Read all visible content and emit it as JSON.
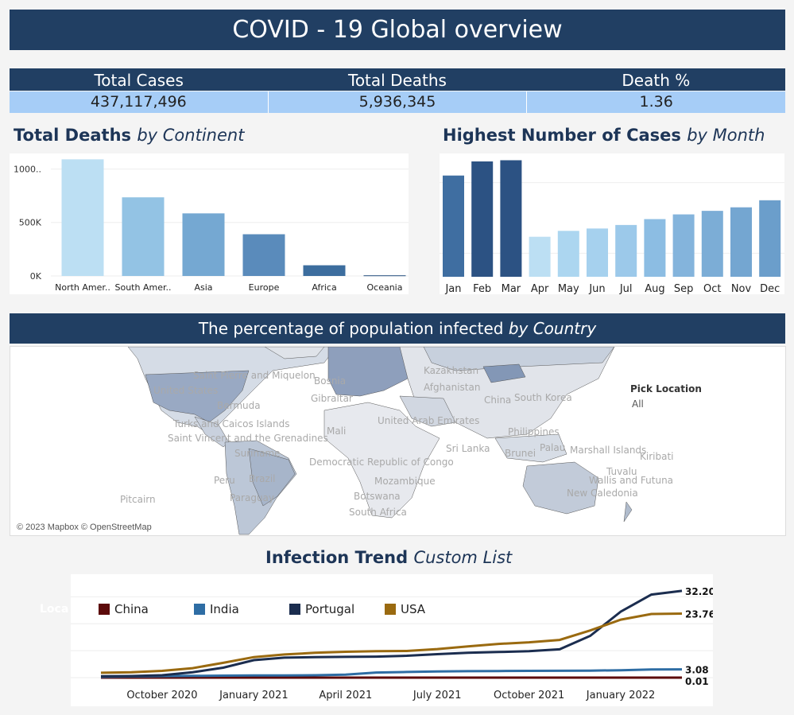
{
  "header": {
    "title": "COVID - 19 Global overview"
  },
  "kpis": {
    "labels": [
      "Total Cases",
      "Total Deaths",
      "Death %"
    ],
    "values": [
      "437,117,496",
      "5,936,345",
      "1.36"
    ]
  },
  "deaths_section": {
    "title_bold": "Total Deaths",
    "title_italic": "by Continent"
  },
  "cases_section": {
    "title_bold": "Highest Number of Cases",
    "title_italic": "by Month"
  },
  "map_section": {
    "title_plain": "The percentage of population infected",
    "title_italic": "by Country",
    "pick_location_label": "Pick Location",
    "pick_location_value": "All",
    "attribution": "© 2023 Mapbox © OpenStreetMap",
    "place_labels": [
      "United States",
      "Saint Pierre and Miquelon",
      "Bermuda",
      "Turks and Caicos Islands",
      "Saint Vincent and the Grenadines",
      "Suriname",
      "Brazil",
      "Peru",
      "Paraguay",
      "Pitcairn",
      "Kazakhstan",
      "Afghanistan",
      "China",
      "South Korea",
      "United Arab Emirates",
      "Mali",
      "Democratic Republic of Congo",
      "Sri Lanka",
      "Philippines",
      "Brunei",
      "Palau",
      "Marshall Islands",
      "Kiribati",
      "Tuvalu",
      "Wallis and Futuna",
      "New Caledonia",
      "Botswana",
      "South Africa",
      "Mozambique",
      "Bosnia",
      "Gibraltar"
    ]
  },
  "trend_section": {
    "title_bold": "Infection Trend",
    "title_italic": "Custom List",
    "hidden_label": "Loca",
    "end_labels": [
      "32.20",
      "23.76",
      "3.08",
      "0.01"
    ]
  },
  "colors": {
    "navy": "#213f63",
    "kpi_light": "#a6cdf7",
    "china": "#5c0a0a",
    "india": "#2e6da4",
    "portugal": "#1b2d4f",
    "usa": "#9a6a10"
  },
  "chart_data": [
    {
      "type": "bar",
      "title": "Total Deaths by Continent",
      "categories": [
        "North America",
        "South America",
        "Asia",
        "Europe",
        "Africa",
        "Oceania"
      ],
      "tick_labels": [
        "North Amer..",
        "South Amer..",
        "Asia",
        "Europe",
        "Africa",
        "Oceania"
      ],
      "values": [
        1090000,
        735000,
        585000,
        390000,
        100000,
        6000
      ],
      "y_ticks": [
        "0K",
        "500K",
        "1000.."
      ],
      "ylim": [
        0,
        1100000
      ],
      "colors": [
        "#bcdff3",
        "#93c3e4",
        "#75a8d2",
        "#5a8bbb",
        "#3c6d9e",
        "#244f7e"
      ]
    },
    {
      "type": "bar",
      "title": "Highest Number of Cases by Month",
      "categories": [
        "Jan",
        "Feb",
        "Mar",
        "Apr",
        "May",
        "Jun",
        "Jul",
        "Aug",
        "Sep",
        "Oct",
        "Nov",
        "Dec"
      ],
      "values": [
        86,
        98,
        99,
        34,
        39,
        41,
        44,
        49,
        53,
        56,
        59,
        65
      ],
      "colors": [
        "#3f6ea1",
        "#2c5283",
        "#2c5283",
        "#bcdff3",
        "#acd6f0",
        "#a6d1ee",
        "#9cc9ea",
        "#8cbde3",
        "#84b4dc",
        "#7cadd6",
        "#74a6d1",
        "#6b9ecb"
      ]
    },
    {
      "type": "line",
      "title": "Infection Trend",
      "x_ticks": [
        "October 2020",
        "January 2021",
        "April 2021",
        "July 2021",
        "October 2021",
        "January 2022"
      ],
      "x": [
        "2020-08",
        "2020-09",
        "2020-10",
        "2020-11",
        "2020-12",
        "2021-01",
        "2021-02",
        "2021-03",
        "2021-04",
        "2021-05",
        "2021-06",
        "2021-07",
        "2021-08",
        "2021-09",
        "2021-10",
        "2021-11",
        "2021-12",
        "2022-01",
        "2022-02",
        "2022-03"
      ],
      "ylim": [
        0,
        36
      ],
      "series": [
        {
          "name": "China",
          "color": "#5c0a0a",
          "values": [
            0.01,
            0.01,
            0.01,
            0.01,
            0.01,
            0.01,
            0.01,
            0.01,
            0.01,
            0.01,
            0.01,
            0.01,
            0.01,
            0.01,
            0.01,
            0.01,
            0.01,
            0.01,
            0.01,
            0.01
          ]
        },
        {
          "name": "India",
          "color": "#2e6da4",
          "values": [
            0.3,
            0.45,
            0.55,
            0.65,
            0.75,
            0.8,
            0.82,
            0.9,
            1.1,
            1.9,
            2.1,
            2.3,
            2.4,
            2.45,
            2.5,
            2.55,
            2.6,
            2.75,
            3.05,
            3.08
          ]
        },
        {
          "name": "Portugal",
          "color": "#1b2d4f",
          "values": [
            0.5,
            0.6,
            0.9,
            2.0,
            3.7,
            6.5,
            7.4,
            7.6,
            7.7,
            7.8,
            8.1,
            8.7,
            9.2,
            9.5,
            9.8,
            10.5,
            15.5,
            24.5,
            30.8,
            32.2
          ]
        },
        {
          "name": "USA",
          "color": "#9a6a10",
          "values": [
            1.8,
            2.0,
            2.5,
            3.5,
            5.5,
            7.6,
            8.6,
            9.2,
            9.6,
            9.8,
            9.9,
            10.6,
            11.6,
            12.5,
            13.1,
            14.0,
            17.5,
            21.5,
            23.6,
            23.76
          ]
        }
      ]
    }
  ]
}
